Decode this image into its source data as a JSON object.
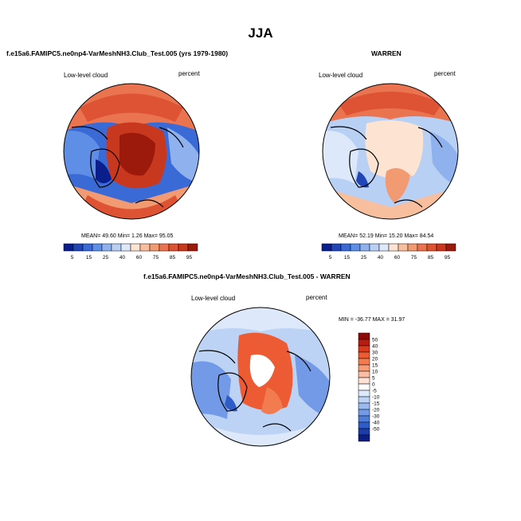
{
  "title": "JJA",
  "panels": {
    "test": {
      "title": "f.e15a6.FAMIPC5.ne0np4-VarMeshNH3.Club_Test.005 (yrs 1979-1980)",
      "variable": "Low-level cloud",
      "units": "percent",
      "stats": "MEAN=  49.60  Min=   1.26  Max=  95.05"
    },
    "obs": {
      "title": "WARREN",
      "variable": "Low-level cloud",
      "units": "percent",
      "stats": "MEAN=  52.19  Min=  15.20  Max=  84.54"
    },
    "diff": {
      "title": "f.e15a6.FAMIPC5.ne0np4-VarMeshNH3.Club_Test.005 - WARREN",
      "variable": "Low-level cloud",
      "units": "percent",
      "stats": "MIN = -36.77 MAX =  31.97"
    }
  },
  "colorbars": {
    "abs_labels": [
      "5",
      "15",
      "25",
      "40",
      "60",
      "75",
      "85",
      "95"
    ],
    "abs_colors": [
      "#0a1e8c",
      "#2145b5",
      "#3a6ad6",
      "#5f8ee6",
      "#8fb2ef",
      "#b9d0f5",
      "#dde9fa",
      "#fde3d2",
      "#f8bf9e",
      "#f29a72",
      "#ea7450",
      "#de5333",
      "#c8381f",
      "#9c1a0c"
    ],
    "diff_labels": [
      "50",
      "40",
      "30",
      "20",
      "15",
      "10",
      "5",
      "0",
      "-5",
      "-10",
      "-15",
      "-20",
      "-30",
      "-40",
      "-50"
    ],
    "diff_colors": [
      "#8c0a08",
      "#b81c10",
      "#d93a1d",
      "#ec5b33",
      "#f27c50",
      "#f79c77",
      "#fabda2",
      "#fde1d2",
      "#ffffff",
      "#dde9fa",
      "#bcd3f6",
      "#99b9f0",
      "#739ae6",
      "#4f7cd9",
      "#2f5cc6",
      "#1c3ca8",
      "#0a1e86"
    ]
  }
}
